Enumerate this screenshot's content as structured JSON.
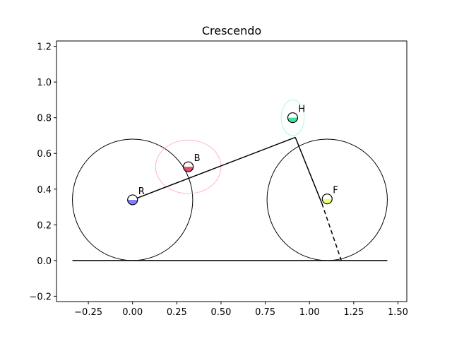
{
  "chart_data": {
    "type": "scatter",
    "title": "Crescendo",
    "xlabel": "",
    "ylabel": "",
    "xlim": [
      -0.43,
      1.55
    ],
    "ylim": [
      -0.23,
      1.23
    ],
    "grid": false,
    "xticks": [
      {
        "value": -0.25,
        "label": "−0.25"
      },
      {
        "value": 0.0,
        "label": "0.00"
      },
      {
        "value": 0.25,
        "label": "0.25"
      },
      {
        "value": 0.5,
        "label": "0.50"
      },
      {
        "value": 0.75,
        "label": "0.75"
      },
      {
        "value": 1.0,
        "label": "1.00"
      },
      {
        "value": 1.25,
        "label": "1.25"
      },
      {
        "value": 1.5,
        "label": "1.50"
      }
    ],
    "yticks": [
      {
        "value": -0.2,
        "label": "−0.2"
      },
      {
        "value": 0.0,
        "label": "0.0"
      },
      {
        "value": 0.2,
        "label": "0.2"
      },
      {
        "value": 0.4,
        "label": "0.4"
      },
      {
        "value": 0.6,
        "label": "0.6"
      },
      {
        "value": 0.8,
        "label": "0.8"
      },
      {
        "value": 1.0,
        "label": "1.0"
      },
      {
        "value": 1.2,
        "label": "1.2"
      }
    ],
    "ground": {
      "x1": -0.34,
      "x2": 1.44,
      "y": 0.0
    },
    "wheels": [
      {
        "name": "rear-wheel",
        "cx": 0.0,
        "cy": 0.34,
        "r": 0.34
      },
      {
        "name": "front-wheel",
        "cx": 1.1,
        "cy": 0.34,
        "r": 0.34
      }
    ],
    "segments": [
      {
        "name": "frame-top",
        "x1": 0.0,
        "y1": 0.34,
        "x2": 0.92,
        "y2": 0.69,
        "dashed": false
      },
      {
        "name": "fork",
        "x1": 0.92,
        "y1": 0.69,
        "x2": 1.07,
        "y2": 0.32,
        "dashed": false
      },
      {
        "name": "fork-extension",
        "x1": 1.07,
        "y1": 0.32,
        "x2": 1.18,
        "y2": 0.0,
        "dashed": true
      }
    ],
    "ellipses": [
      {
        "name": "B-ellipse",
        "cx": 0.315,
        "cy": 0.525,
        "rx": 0.185,
        "ry": 0.15,
        "color": "#ffb6c1"
      },
      {
        "name": "H-ellipse",
        "cx": 0.905,
        "cy": 0.8,
        "rx": 0.065,
        "ry": 0.1,
        "color": "#aef5e6"
      }
    ],
    "points": [
      {
        "label": "R",
        "x": 0.0,
        "y": 0.34,
        "color": "#8080ff"
      },
      {
        "label": "B",
        "x": 0.315,
        "y": 0.525,
        "color": "#e0506e"
      },
      {
        "label": "H",
        "x": 0.905,
        "y": 0.8,
        "color": "#40e0a0"
      },
      {
        "label": "F",
        "x": 1.1,
        "y": 0.345,
        "color": "#eeff80"
      }
    ]
  }
}
